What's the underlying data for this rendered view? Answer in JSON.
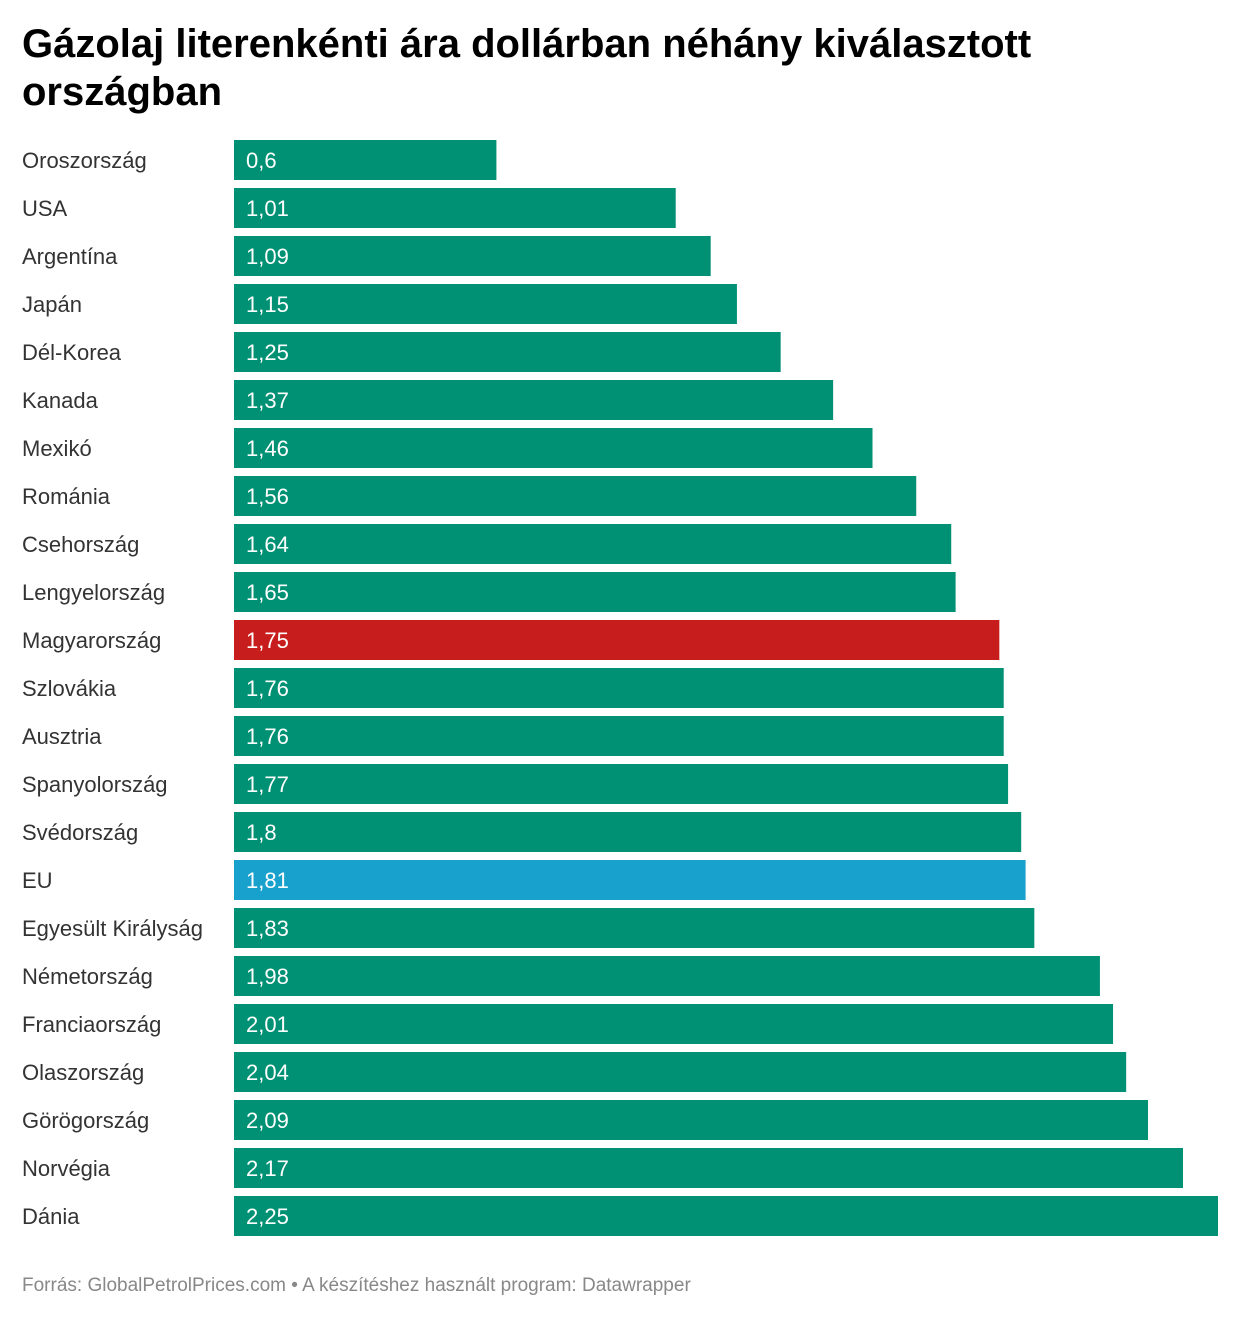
{
  "chart_data": {
    "type": "bar",
    "orientation": "horizontal",
    "title": "Gázolaj literenkénti ára dollárban néhány kiválasztott országban",
    "categories": [
      "Oroszország",
      "USA",
      "Argentína",
      "Japán",
      "Dél-Korea",
      "Kanada",
      "Mexikó",
      "Románia",
      "Csehország",
      "Lengyelország",
      "Magyarország",
      "Szlovákia",
      "Ausztria",
      "Spanyolország",
      "Svédország",
      "EU",
      "Egyesült Királyság",
      "Németország",
      "Franciaország",
      "Olaszország",
      "Görögország",
      "Norvégia",
      "Dánia"
    ],
    "values": [
      0.6,
      1.01,
      1.09,
      1.15,
      1.25,
      1.37,
      1.46,
      1.56,
      1.64,
      1.65,
      1.75,
      1.76,
      1.76,
      1.77,
      1.8,
      1.81,
      1.83,
      1.98,
      2.01,
      2.04,
      2.09,
      2.17,
      2.25
    ],
    "value_labels": [
      "0,6",
      "1,01",
      "1,09",
      "1,15",
      "1,25",
      "1,37",
      "1,46",
      "1,56",
      "1,64",
      "1,65",
      "1,75",
      "1,76",
      "1,76",
      "1,77",
      "1,8",
      "1,81",
      "1,83",
      "1,98",
      "2,01",
      "2,04",
      "2,09",
      "2,17",
      "2,25"
    ],
    "xlim": [
      0,
      2.25
    ],
    "grid": false,
    "legend": "none",
    "colors": {
      "default": "#009073",
      "highlight_hu": "#c71e1d",
      "highlight_eu": "#18a1cd"
    },
    "highlights": {
      "Magyarország": "#c71e1d",
      "EU": "#18a1cd"
    }
  },
  "footer": {
    "text": "Forrás: GlobalPetrolPrices.com • A készítéshez használt program: Datawrapper"
  }
}
